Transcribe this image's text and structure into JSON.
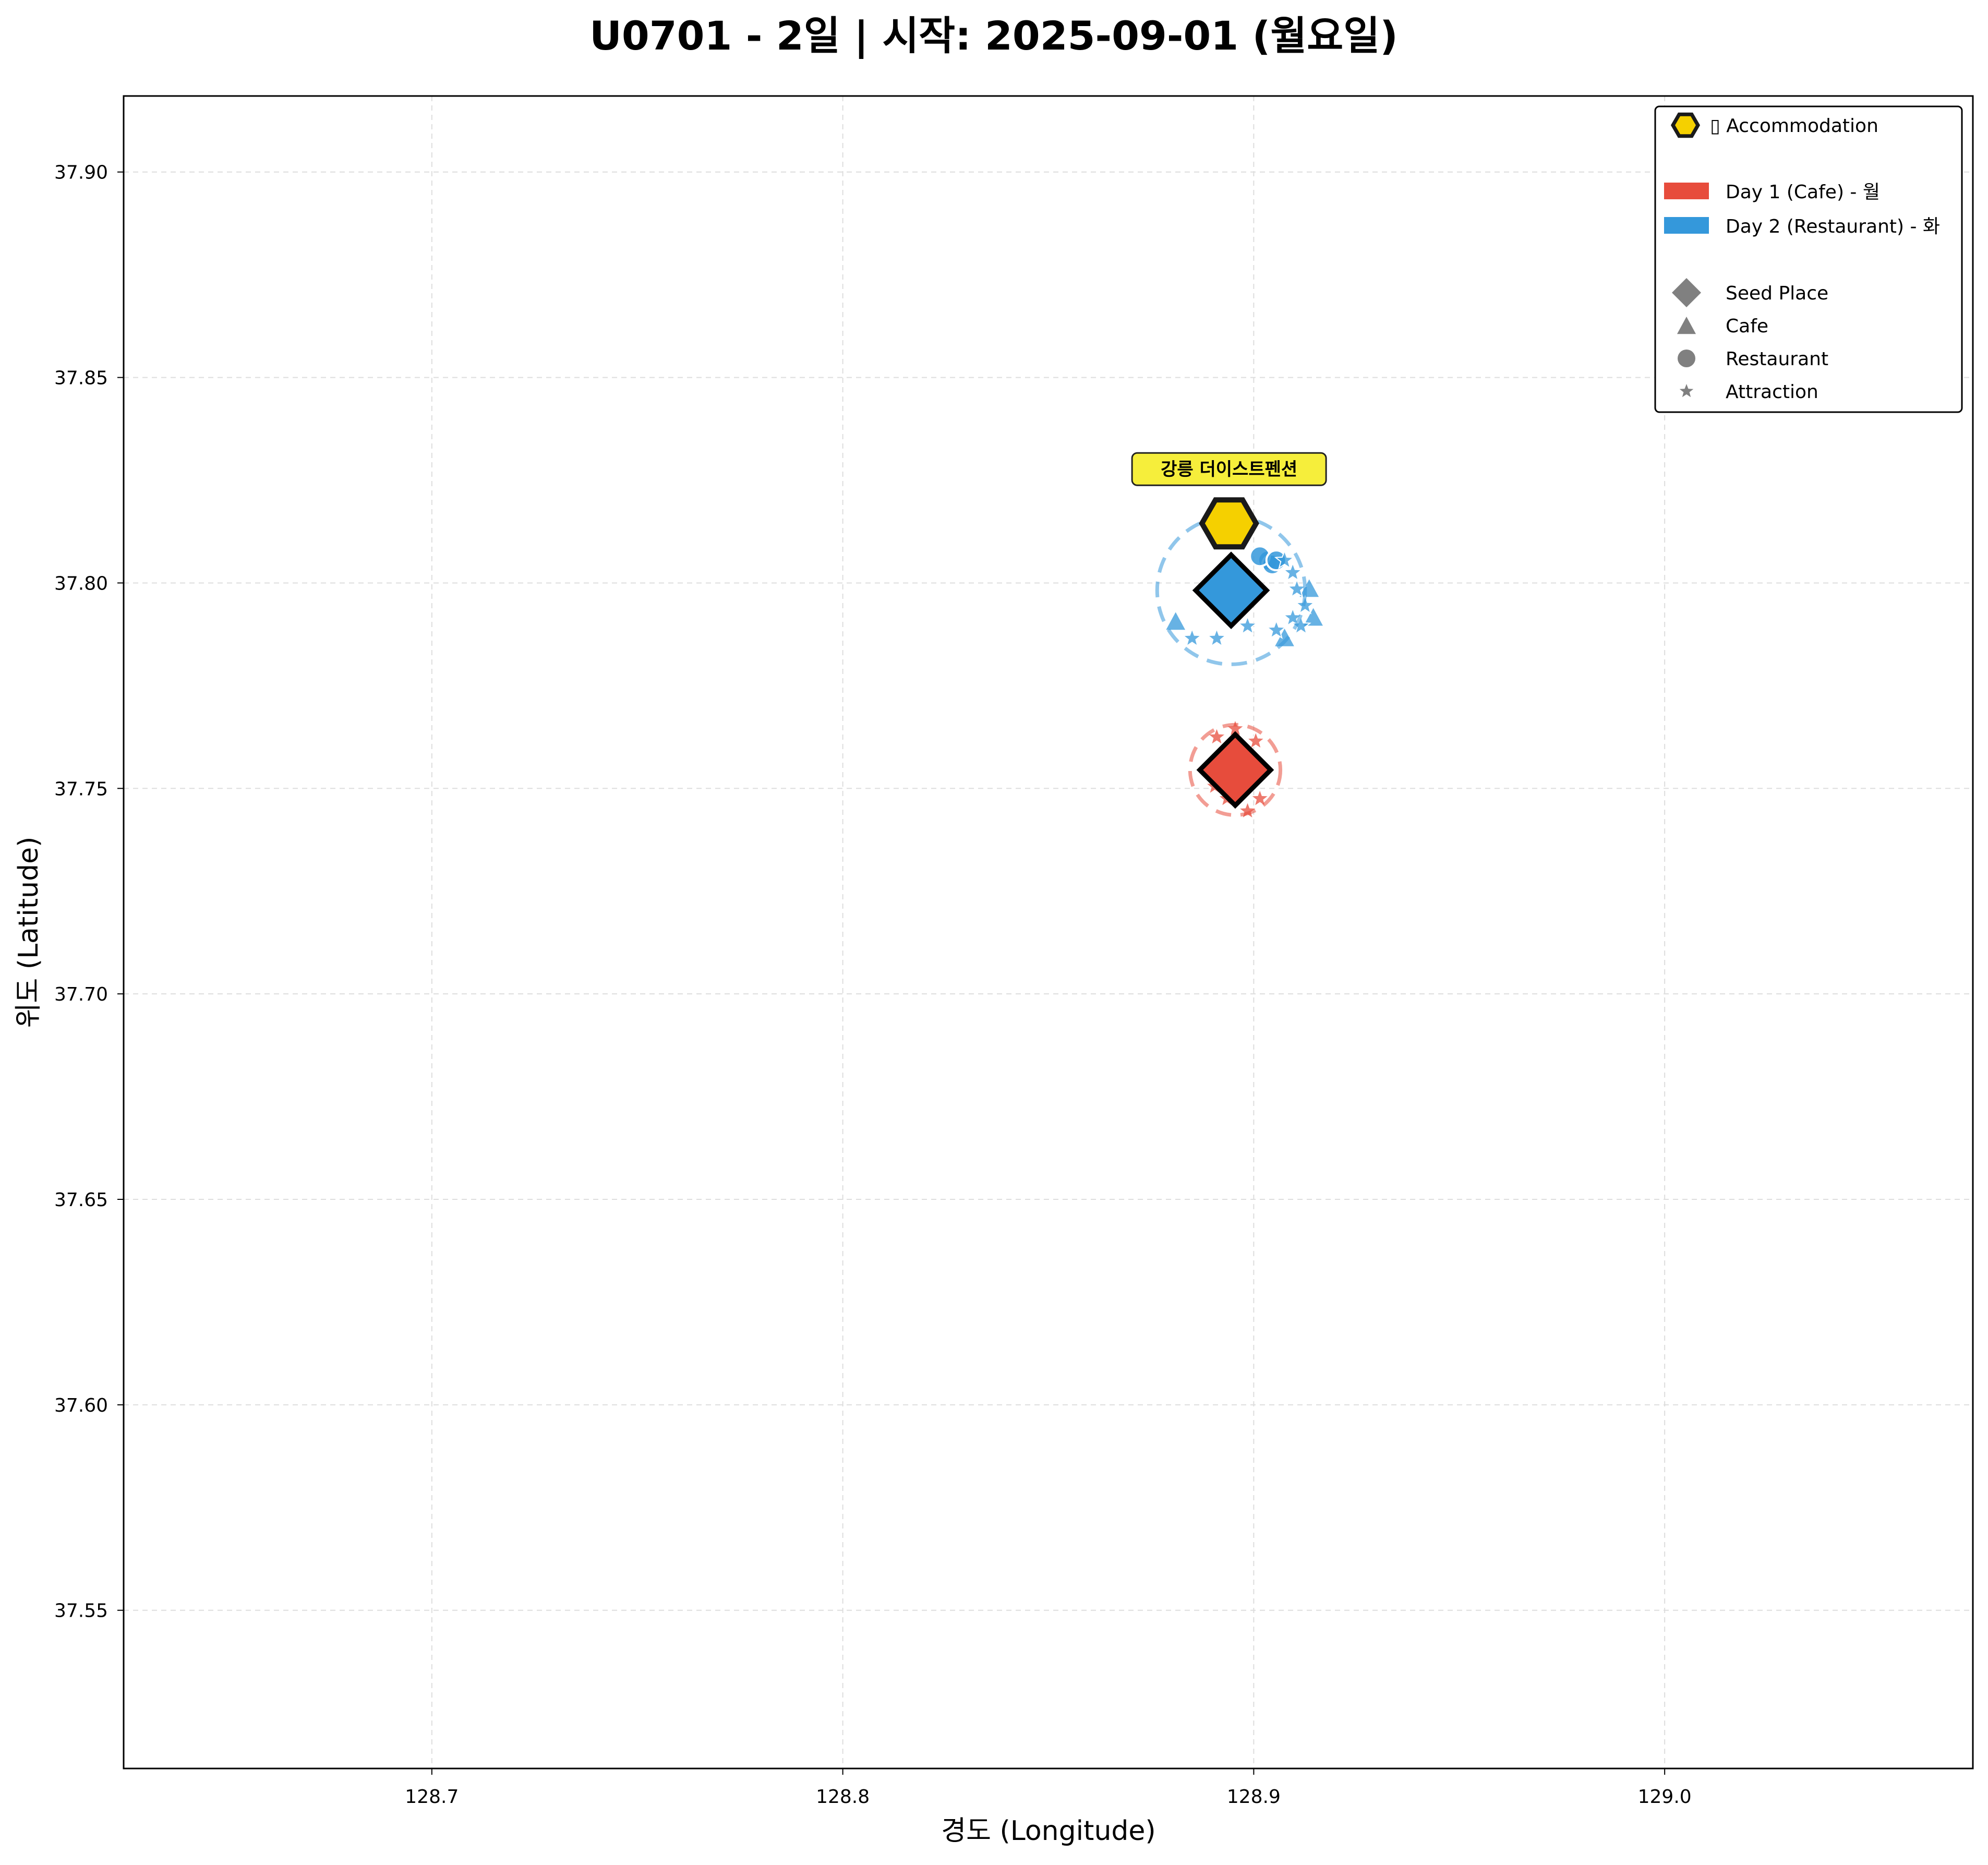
{
  "chart_data": {
    "type": "scatter",
    "title": "U0701 - 2일 | 시작: 2025-09-01 (월요일)",
    "xlabel": "경도 (Longitude)",
    "ylabel": "위도 (Latitude)",
    "xlim": [
      128.625,
      129.075
    ],
    "ylim": [
      37.5115,
      37.9185
    ],
    "xticks": [
      128.7,
      128.8,
      128.9,
      129.0
    ],
    "xtick_labels": [
      "128.7",
      "128.8",
      "128.9",
      "129.0"
    ],
    "yticks": [
      37.55,
      37.6,
      37.65,
      37.7,
      37.75,
      37.8,
      37.85,
      37.9
    ],
    "ytick_labels": [
      "37.55",
      "37.60",
      "37.65",
      "37.70",
      "37.75",
      "37.80",
      "37.85",
      "37.90"
    ],
    "grid": true,
    "legend_position": "top-right",
    "accommodation": {
      "name": "강릉 더이스트펜션",
      "x": 128.894,
      "y": 37.8145,
      "color": "#f5d000"
    },
    "legend": {
      "accommodation": "▯ Accommodation",
      "days": [
        {
          "label": "Day 1 (Cafe) - 월",
          "color": "#e74c3c"
        },
        {
          "label": "Day 2 (Restaurant) - 화",
          "color": "#3498db"
        }
      ],
      "markers": [
        {
          "label": "Seed Place",
          "shape": "diamond"
        },
        {
          "label": "Cafe",
          "shape": "triangle"
        },
        {
          "label": "Restaurant",
          "shape": "circle"
        },
        {
          "label": "Attraction",
          "shape": "star"
        }
      ]
    },
    "series": [
      {
        "name": "Day 1 (Cafe) - 월",
        "color": "#e74c3c",
        "seed": {
          "x": 128.8955,
          "y": 37.7545
        },
        "radius_lat": 0.011,
        "points": [
          {
            "x": 128.891,
            "y": 37.7625,
            "kind": "attraction"
          },
          {
            "x": 128.8955,
            "y": 37.7645,
            "kind": "attraction"
          },
          {
            "x": 128.9005,
            "y": 37.7615,
            "kind": "attraction"
          },
          {
            "x": 128.8905,
            "y": 37.7505,
            "kind": "attraction"
          },
          {
            "x": 128.8935,
            "y": 37.7475,
            "kind": "attraction"
          },
          {
            "x": 128.8985,
            "y": 37.7445,
            "kind": "attraction"
          },
          {
            "x": 128.9015,
            "y": 37.7475,
            "kind": "attraction"
          }
        ]
      },
      {
        "name": "Day 2 (Restaurant) - 화",
        "color": "#3498db",
        "seed": {
          "x": 128.8945,
          "y": 37.7982
        },
        "radius_lat": 0.018,
        "points": [
          {
            "x": 128.9035,
            "y": 37.8055,
            "kind": "restaurant"
          },
          {
            "x": 128.9045,
            "y": 37.8045,
            "kind": "restaurant"
          },
          {
            "x": 128.9015,
            "y": 37.8065,
            "kind": "restaurant"
          },
          {
            "x": 128.9055,
            "y": 37.8055,
            "kind": "restaurant"
          },
          {
            "x": 128.881,
            "y": 37.7905,
            "kind": "cafe"
          },
          {
            "x": 128.9135,
            "y": 37.7985,
            "kind": "cafe"
          },
          {
            "x": 128.9145,
            "y": 37.7915,
            "kind": "cafe"
          },
          {
            "x": 128.9075,
            "y": 37.7865,
            "kind": "cafe"
          },
          {
            "x": 128.885,
            "y": 37.7865,
            "kind": "attraction"
          },
          {
            "x": 128.891,
            "y": 37.7865,
            "kind": "attraction"
          },
          {
            "x": 128.8985,
            "y": 37.7895,
            "kind": "attraction"
          },
          {
            "x": 128.9075,
            "y": 37.8055,
            "kind": "attraction"
          },
          {
            "x": 128.9095,
            "y": 37.8025,
            "kind": "attraction"
          },
          {
            "x": 128.9105,
            "y": 37.7985,
            "kind": "attraction"
          },
          {
            "x": 128.9095,
            "y": 37.7915,
            "kind": "attraction"
          },
          {
            "x": 128.9125,
            "y": 37.7945,
            "kind": "attraction"
          },
          {
            "x": 128.9055,
            "y": 37.7885,
            "kind": "attraction"
          },
          {
            "x": 128.9115,
            "y": 37.7895,
            "kind": "attraction"
          }
        ]
      }
    ]
  }
}
